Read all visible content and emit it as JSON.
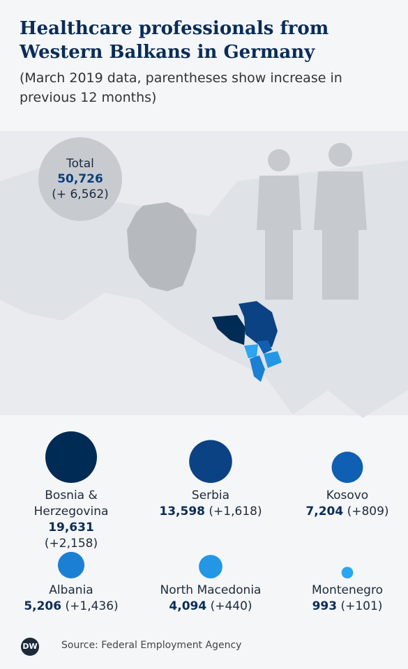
{
  "chart_data": {
    "type": "bubble",
    "title": "Healthcare professionals from Western Balkans in Germany",
    "subtitle": "(March 2019 data, parentheses show increase in previous 12 months)",
    "total": {
      "label": "Total",
      "value": 50726,
      "value_label": "50,726",
      "increase": 6562,
      "increase_label": "(+ 6,562)"
    },
    "categories": [
      "Bosnia & Herzegovina",
      "Serbia",
      "Kosovo",
      "Albania",
      "North Macedonia",
      "Montenegro"
    ],
    "values": [
      19631,
      13598,
      7204,
      5206,
      4094,
      993
    ],
    "value_labels": [
      "19,631",
      "13,598",
      "7,204",
      "5,206",
      "4,094",
      "993"
    ],
    "increases": {
      "values": [
        2158,
        1618,
        809,
        1436,
        440,
        101
      ],
      "value_labels": [
        "(+2,158)",
        "(+1,618)",
        "(+809)",
        "(+1,436)",
        "(+440)",
        "(+101)"
      ]
    },
    "colors": [
      "#002b55",
      "#0b4283",
      "#0f5fb3",
      "#1b7fd3",
      "#2397e6",
      "#2ba6f0"
    ],
    "source": "Source: Federal Employment Agency",
    "logo": "DW"
  }
}
